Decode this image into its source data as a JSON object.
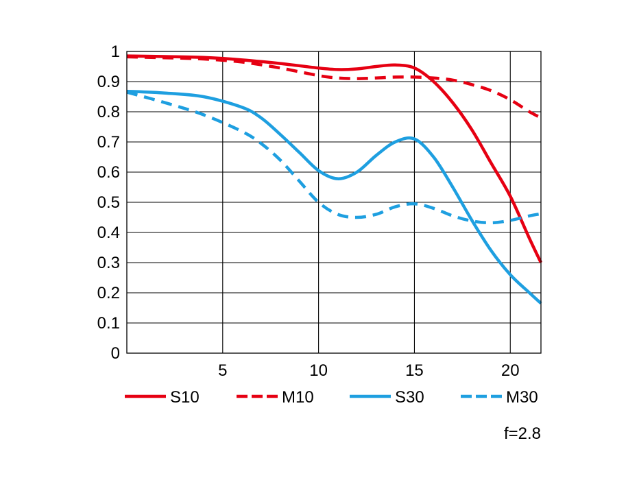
{
  "chart_data": {
    "type": "line",
    "title": "",
    "xlabel": "",
    "ylabel": "",
    "xlim": [
      0,
      21.6
    ],
    "ylim": [
      0,
      1
    ],
    "grid": true,
    "legend_position": "bottom",
    "note": "f=2.8",
    "x_ticks": [
      5,
      10,
      15,
      20
    ],
    "y_ticks": [
      0,
      0.1,
      0.2,
      0.3,
      0.4,
      0.5,
      0.6,
      0.7,
      0.8,
      0.9,
      1
    ],
    "y_tick_labels": [
      "0",
      "0.1",
      "0.2",
      "0.3",
      "0.4",
      "0.5",
      "0.6",
      "0.7",
      "0.8",
      "0.9",
      "1"
    ],
    "series": [
      {
        "name": "S10",
        "color": "#e60012",
        "dash": "solid",
        "x": [
          0,
          2,
          4,
          6,
          8,
          10,
          11,
          12,
          13,
          14,
          15,
          16,
          17,
          18,
          19,
          20,
          21,
          21.6
        ],
        "y": [
          0.985,
          0.983,
          0.98,
          0.972,
          0.96,
          0.945,
          0.94,
          0.942,
          0.95,
          0.955,
          0.945,
          0.9,
          0.83,
          0.74,
          0.63,
          0.52,
          0.38,
          0.3
        ]
      },
      {
        "name": "M10",
        "color": "#e60012",
        "dash": "dashed",
        "x": [
          0,
          2,
          4,
          6,
          8,
          10,
          11,
          12,
          13,
          14,
          15,
          16,
          17,
          18,
          19,
          20,
          21,
          21.6
        ],
        "y": [
          0.982,
          0.979,
          0.975,
          0.965,
          0.945,
          0.92,
          0.912,
          0.91,
          0.912,
          0.915,
          0.915,
          0.912,
          0.905,
          0.89,
          0.87,
          0.84,
          0.8,
          0.78
        ]
      },
      {
        "name": "S30",
        "color": "#1e9fe0",
        "dash": "solid",
        "x": [
          0,
          2,
          4,
          6,
          7,
          8,
          9,
          10,
          11,
          12,
          13,
          14,
          15,
          16,
          17,
          18,
          19,
          20,
          21,
          21.6
        ],
        "y": [
          0.868,
          0.862,
          0.85,
          0.815,
          0.78,
          0.725,
          0.665,
          0.605,
          0.578,
          0.6,
          0.655,
          0.7,
          0.71,
          0.65,
          0.55,
          0.44,
          0.34,
          0.26,
          0.2,
          0.165
        ]
      },
      {
        "name": "M30",
        "color": "#1e9fe0",
        "dash": "dashed",
        "x": [
          0,
          2,
          4,
          6,
          7,
          8,
          9,
          10,
          11,
          12,
          13,
          14,
          15,
          16,
          17,
          18,
          19,
          20,
          21,
          21.6
        ],
        "y": [
          0.865,
          0.83,
          0.79,
          0.735,
          0.695,
          0.64,
          0.57,
          0.5,
          0.46,
          0.45,
          0.46,
          0.485,
          0.495,
          0.48,
          0.455,
          0.438,
          0.432,
          0.44,
          0.455,
          0.462
        ]
      }
    ]
  }
}
